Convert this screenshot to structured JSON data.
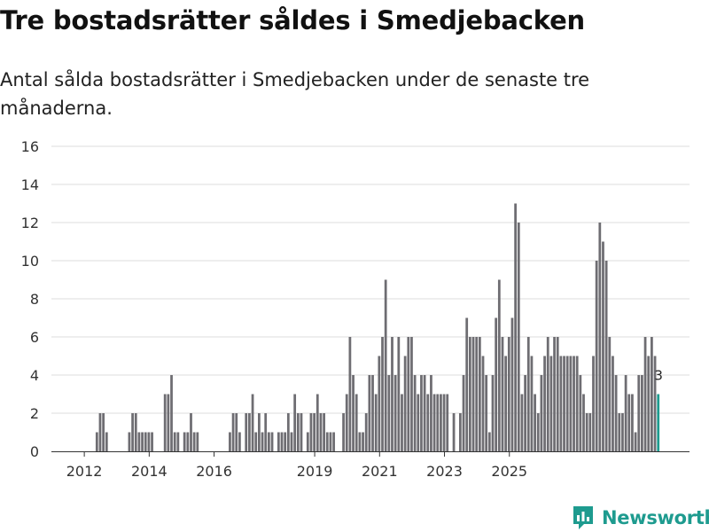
{
  "title": "Tre bostadsrätter såldes i Smedjebacken",
  "subtitle": "Antal sålda bostadsrätter i Smedjebacken under de senaste tre månaderna.",
  "brand": {
    "name": "Newsworthy",
    "color": "#1e9b8f",
    "icon": "newsworthy-logo-icon"
  },
  "colors": {
    "bar": "#6e6d72",
    "highlight": "#1e9b8f",
    "grid": "#dddddd",
    "axis": "#333333"
  },
  "chart_data": {
    "type": "bar",
    "title": "Tre bostadsrätter såldes i Smedjebacken",
    "xlabel": "",
    "ylabel": "",
    "ylim": [
      0,
      16
    ],
    "yticks": [
      0,
      2,
      4,
      6,
      8,
      10,
      12,
      14,
      16
    ],
    "xticks": [
      {
        "label": "2012",
        "index": 8
      },
      {
        "label": "2014",
        "index": 28
      },
      {
        "label": "2016",
        "index": 48
      },
      {
        "label": "2019",
        "index": 79
      },
      {
        "label": "2021",
        "index": 99
      },
      {
        "label": "2023",
        "index": 119
      },
      {
        "label": "2025",
        "index": 139
      }
    ],
    "values": [
      0,
      0,
      0,
      0,
      0,
      0,
      0,
      0,
      0,
      0,
      0,
      0,
      1,
      2,
      2,
      1,
      0,
      0,
      0,
      0,
      0,
      0,
      1,
      2,
      2,
      1,
      1,
      1,
      1,
      1,
      0,
      0,
      0,
      3,
      3,
      4,
      1,
      1,
      0,
      1,
      1,
      2,
      1,
      1,
      0,
      0,
      0,
      0,
      0,
      0,
      0,
      0,
      0,
      1,
      2,
      2,
      1,
      0,
      2,
      2,
      3,
      1,
      2,
      1,
      2,
      1,
      1,
      0,
      1,
      1,
      1,
      2,
      1,
      3,
      2,
      2,
      0,
      1,
      2,
      2,
      3,
      2,
      2,
      1,
      1,
      1,
      0,
      0,
      2,
      3,
      6,
      4,
      3,
      1,
      1,
      2,
      4,
      4,
      3,
      5,
      6,
      9,
      4,
      6,
      4,
      6,
      3,
      5,
      6,
      6,
      4,
      3,
      4,
      4,
      3,
      4,
      3,
      3,
      3,
      3,
      3,
      0,
      2,
      0,
      2,
      4,
      7,
      6,
      6,
      6,
      6,
      5,
      4,
      1,
      4,
      7,
      9,
      6,
      5,
      6,
      7,
      13,
      12,
      3,
      4,
      6,
      5,
      3,
      2,
      4,
      5,
      6,
      5,
      6,
      6,
      5,
      5,
      5,
      5,
      5,
      5,
      4,
      3,
      2,
      2,
      5,
      10,
      12,
      11,
      10,
      6,
      5,
      4,
      2,
      2,
      4,
      3,
      3,
      1,
      4,
      4,
      6,
      5,
      6,
      5,
      3
    ],
    "highlight_last": true,
    "data_label": {
      "text": "3",
      "value": 3
    }
  }
}
